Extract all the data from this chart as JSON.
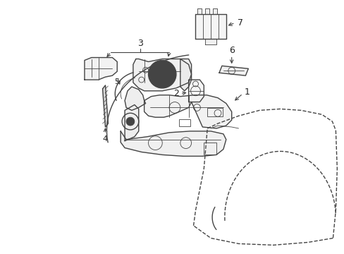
{
  "background_color": "#ffffff",
  "line_color": "#444444",
  "label_color": "#222222",
  "fig_width": 4.89,
  "fig_height": 3.6,
  "dpi": 100,
  "lw_main": 1.0,
  "lw_thin": 0.6,
  "lw_thick": 1.3
}
